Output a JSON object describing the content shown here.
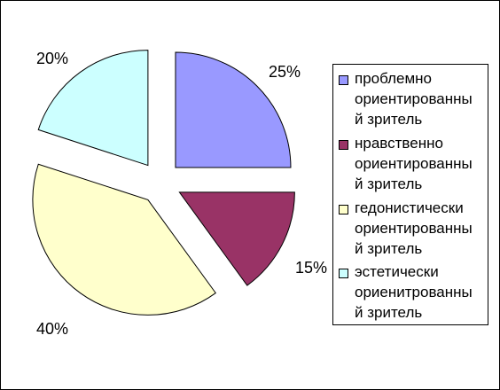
{
  "chart_data": {
    "type": "pie",
    "exploded": true,
    "slices": [
      {
        "label": "проблемно ориентированный зритель",
        "label_lines": [
          "проблемно",
          "ориентированны",
          "й зритель"
        ],
        "value": 25,
        "value_label": "25%",
        "color": "#9999ff"
      },
      {
        "label": "нравственно ориентированный зритель",
        "label_lines": [
          "нравственно",
          "ориентированны",
          "й зритель"
        ],
        "value": 15,
        "value_label": "15%",
        "color": "#993366"
      },
      {
        "label": "гедонистически ориентированный зритель",
        "label_lines": [
          "гедонистически",
          "ориентированны",
          "й зритель"
        ],
        "value": 40,
        "value_label": "40%",
        "color": "#ffffcc"
      },
      {
        "label": "эстетически ориенитрованный зритель",
        "label_lines": [
          "эстетически",
          "ориенитрованны",
          "й зритель"
        ],
        "value": 20,
        "value_label": "20%",
        "color": "#ccffff"
      }
    ],
    "legend_position": "right"
  }
}
